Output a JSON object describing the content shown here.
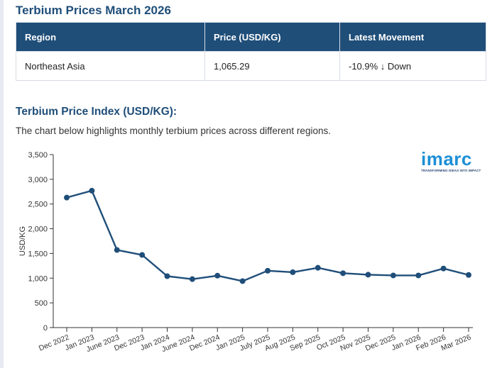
{
  "page_title": "Terbium Prices March 2026",
  "table": {
    "headers": [
      "Region",
      "Price (USD/KG)",
      "Latest Movement"
    ],
    "rows": [
      [
        "Northeast Asia",
        "1,065.29",
        "-10.9% ↓ Down"
      ]
    ]
  },
  "section_title": "Terbium Price Index (USD/KG):",
  "description": "The chart below highlights monthly terbium prices across different regions.",
  "logo": {
    "word": "imarc",
    "tagline": "TRANSFORMING IDEAS INTO IMPACT"
  },
  "colors": {
    "header_bg": "#1f4e79",
    "line": "#1f4e79",
    "logo": "#1c8fd6"
  },
  "chart_data": {
    "type": "line",
    "title": "",
    "xlabel": "",
    "ylabel": "USD/KG",
    "ylim": [
      0,
      3500
    ],
    "yticks": [
      0,
      500,
      1000,
      1500,
      2000,
      2500,
      3000,
      3500
    ],
    "ytick_labels": [
      "0",
      "500",
      "1,000",
      "1,500",
      "2,000",
      "2,500",
      "3,000",
      "3,500"
    ],
    "grid": false,
    "categories": [
      "Dec 2022",
      "Jan 2023",
      "June 2023",
      "Dec 2023",
      "Jan 2024",
      "June 2024",
      "Dec 2024",
      "Jan 2025",
      "July 2025",
      "Aug 2025",
      "Sep 2025",
      "Oct 2025",
      "Nov 2025",
      "Dec 2025",
      "Jan 2026",
      "Feb 2026",
      "Mar 2026"
    ],
    "series": [
      {
        "name": "Northeast Asia",
        "values": [
          2630,
          2770,
          1570,
          1470,
          1040,
          980,
          1050,
          940,
          1150,
          1120,
          1210,
          1100,
          1070,
          1055,
          1055,
          1195,
          1065
        ]
      }
    ]
  }
}
